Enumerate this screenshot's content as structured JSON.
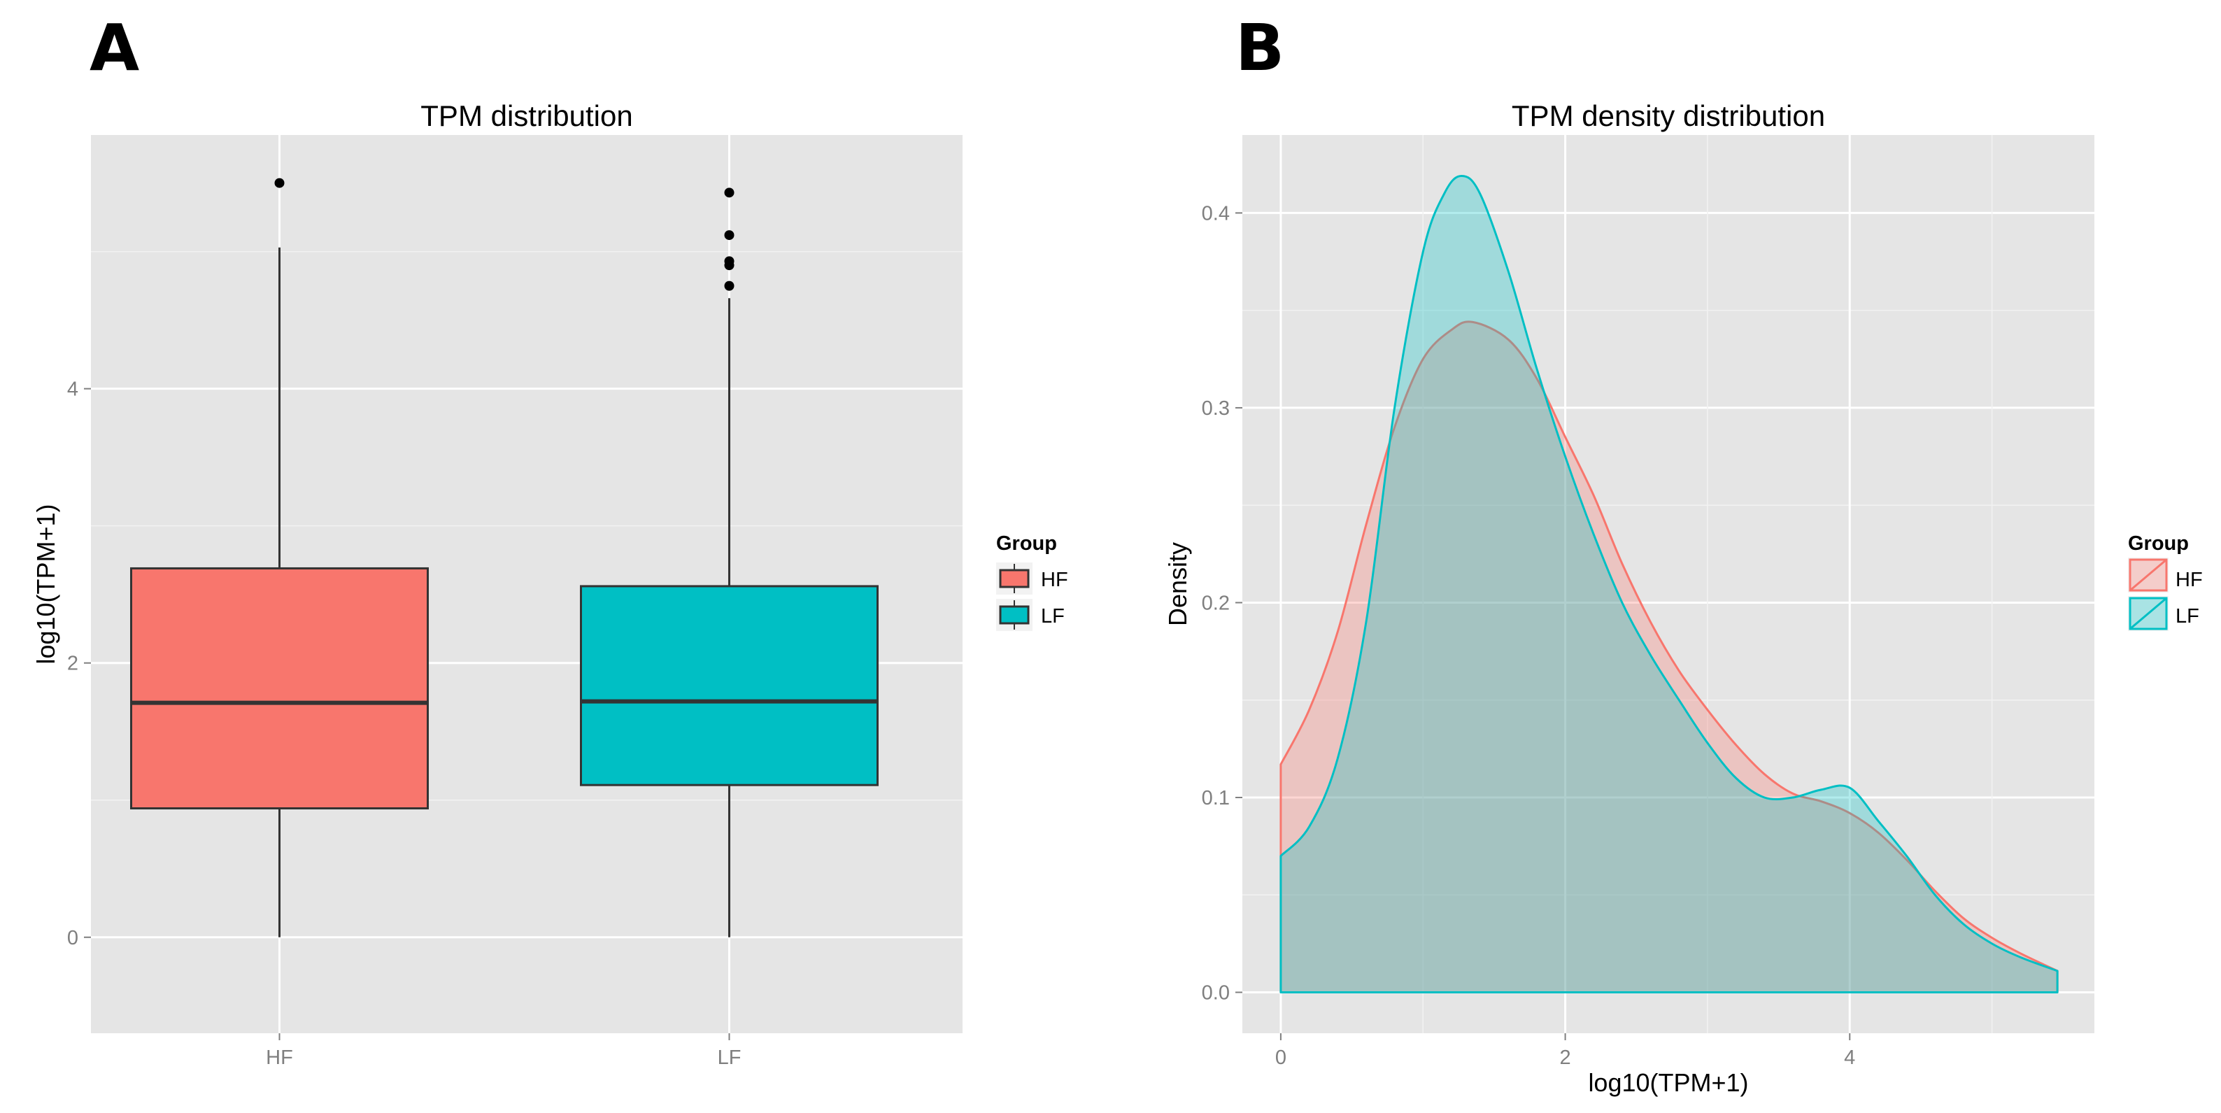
{
  "chart_data": [
    {
      "panel_label": "A",
      "type": "boxplot",
      "title": "TPM distribution",
      "xlabel": "",
      "ylabel": "log10(TPM+1)",
      "ylim": [
        -0.7,
        5.85
      ],
      "yticks": [
        "0",
        "2",
        "4"
      ],
      "ytick_values": [
        0,
        2,
        4
      ],
      "categories": [
        "HF",
        "LF"
      ],
      "boxes": [
        {
          "name": "HF",
          "min": 0.0,
          "q1": 0.94,
          "median": 1.71,
          "q3": 2.69,
          "max": 5.03,
          "outliers": [
            5.5
          ],
          "color": "#F8766D"
        },
        {
          "name": "LF",
          "min": 0.0,
          "q1": 1.11,
          "median": 1.72,
          "q3": 2.56,
          "max": 4.66,
          "outliers": [
            4.75,
            4.9,
            4.93,
            5.12,
            5.43
          ],
          "color": "#00BFC4"
        }
      ],
      "legend": {
        "title": "Group",
        "entries": [
          "HF",
          "LF"
        ],
        "position": "right"
      },
      "grid": true,
      "background": "#E5E5E5"
    },
    {
      "panel_label": "B",
      "type": "area",
      "title": "TPM density distribution",
      "xlabel": "log10(TPM+1)",
      "ylabel": "Density",
      "xlim": [
        -0.27,
        5.72
      ],
      "ylim": [
        -0.021,
        0.44
      ],
      "xticks": [
        "0",
        "2",
        "4"
      ],
      "xtick_values": [
        0,
        2,
        4
      ],
      "yticks": [
        "0.0",
        "0.1",
        "0.2",
        "0.3",
        "0.4"
      ],
      "ytick_values": [
        0,
        0.1,
        0.2,
        0.3,
        0.4
      ],
      "series": [
        {
          "name": "HF",
          "color": "#F8766D",
          "x": [
            0,
            0.2,
            0.4,
            0.6,
            0.8,
            1.0,
            1.2,
            1.35,
            1.6,
            1.8,
            2.0,
            2.2,
            2.4,
            2.6,
            2.8,
            3.0,
            3.2,
            3.4,
            3.6,
            3.8,
            4.0,
            4.2,
            4.4,
            4.6,
            4.8,
            5.0,
            5.2,
            5.46
          ],
          "y": [
            0.117,
            0.145,
            0.185,
            0.24,
            0.29,
            0.325,
            0.34,
            0.344,
            0.335,
            0.315,
            0.285,
            0.255,
            0.22,
            0.19,
            0.165,
            0.145,
            0.127,
            0.112,
            0.102,
            0.098,
            0.092,
            0.082,
            0.068,
            0.052,
            0.038,
            0.028,
            0.02,
            0.011
          ]
        },
        {
          "name": "LF",
          "color": "#00BFC4",
          "x": [
            0,
            0.2,
            0.4,
            0.6,
            0.8,
            1.0,
            1.15,
            1.27,
            1.4,
            1.6,
            1.8,
            2.0,
            2.2,
            2.4,
            2.6,
            2.8,
            3.0,
            3.2,
            3.4,
            3.6,
            3.8,
            4.0,
            4.2,
            4.4,
            4.6,
            4.8,
            5.0,
            5.2,
            5.46
          ],
          "y": [
            0.07,
            0.085,
            0.12,
            0.19,
            0.3,
            0.38,
            0.41,
            0.419,
            0.41,
            0.37,
            0.32,
            0.275,
            0.235,
            0.2,
            0.173,
            0.15,
            0.128,
            0.11,
            0.1,
            0.1,
            0.104,
            0.105,
            0.088,
            0.07,
            0.05,
            0.035,
            0.025,
            0.018,
            0.011
          ]
        }
      ],
      "legend": {
        "title": "Group",
        "entries": [
          "HF",
          "LF"
        ],
        "position": "right"
      },
      "grid": true,
      "background": "#E5E5E5"
    }
  ]
}
